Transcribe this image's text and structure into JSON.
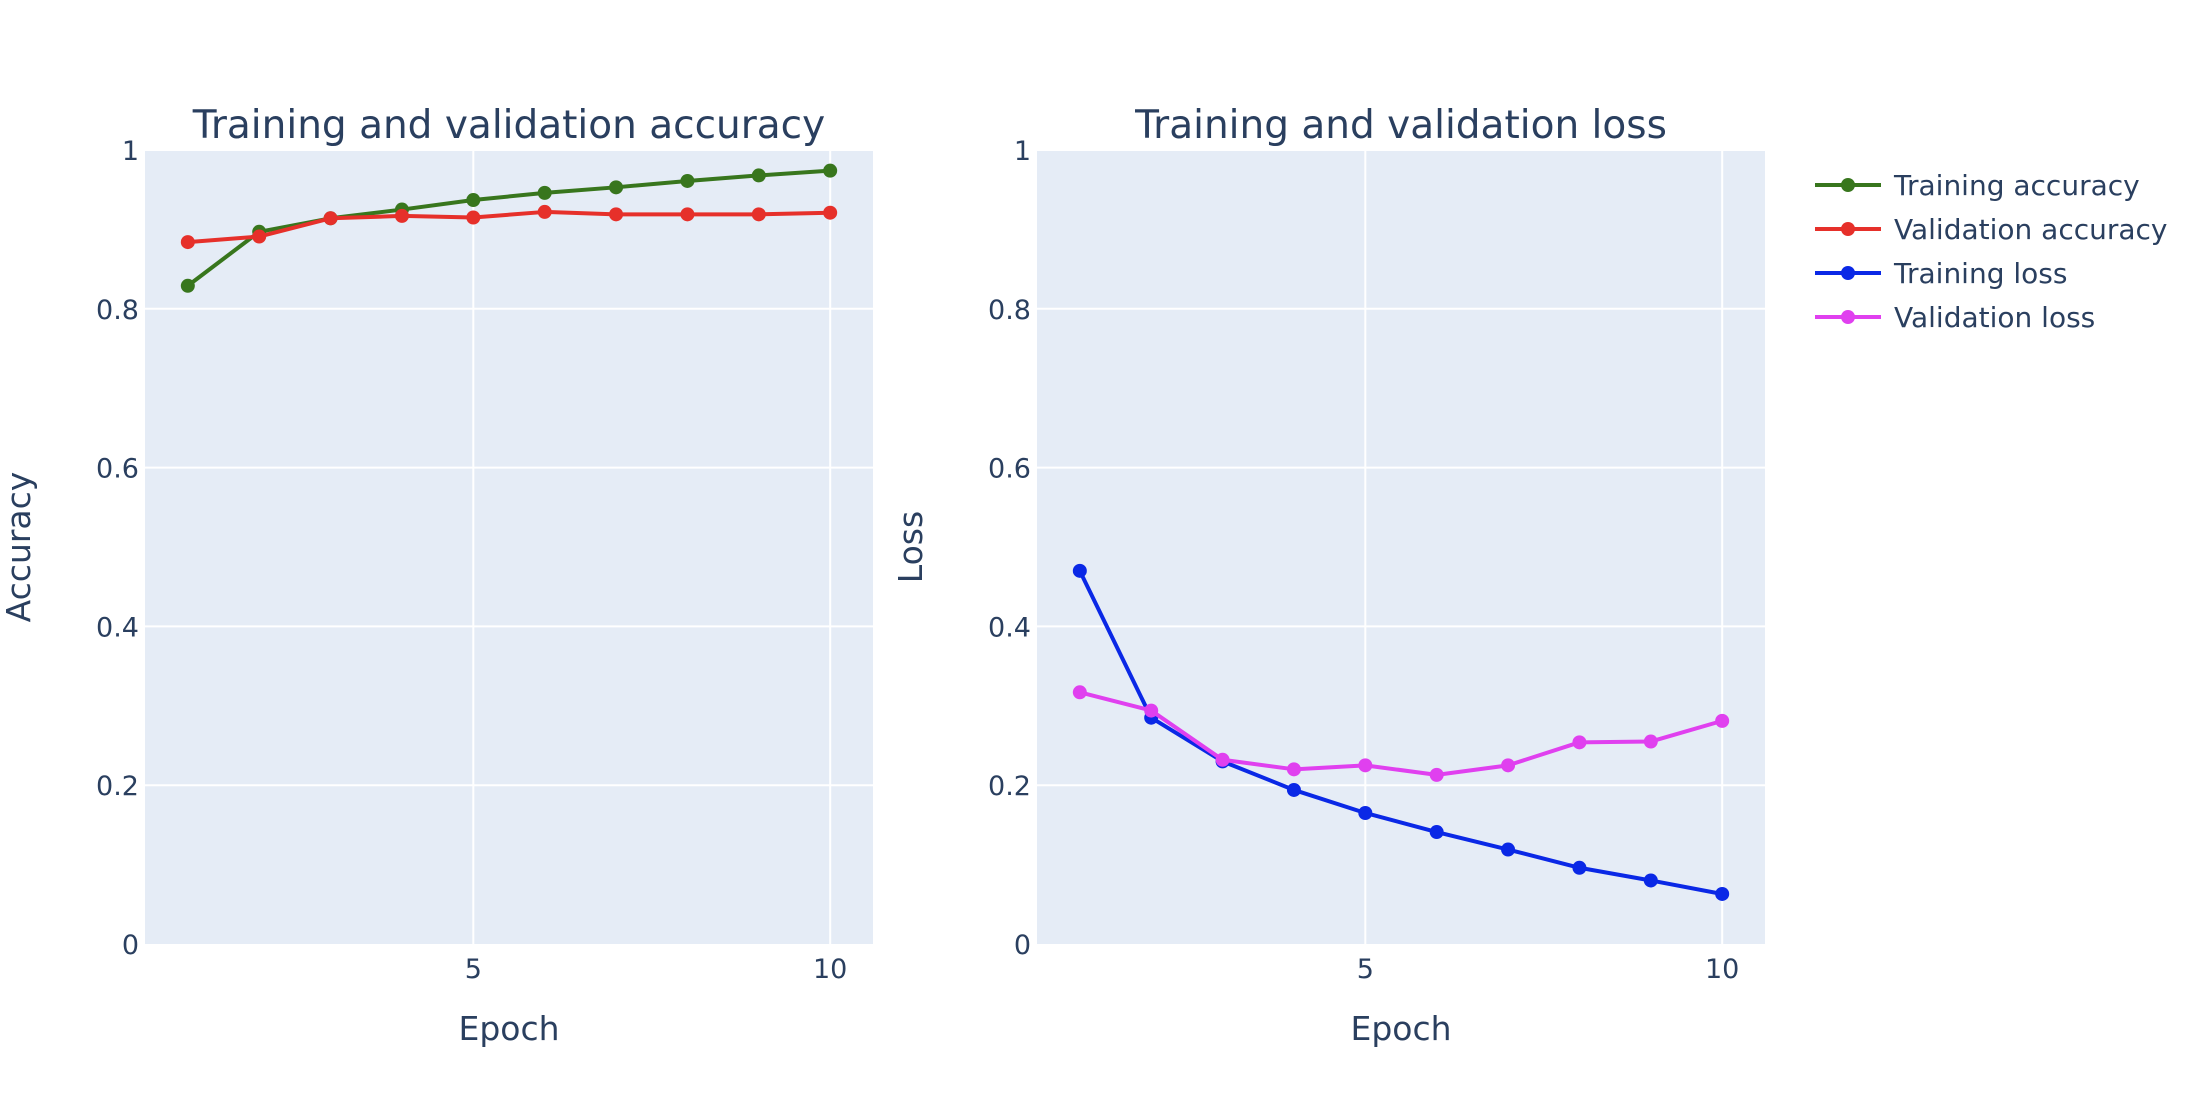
{
  "chart_data": [
    {
      "type": "line",
      "title": "Training and validation accuracy",
      "xlabel": "Epoch",
      "ylabel": "Accuracy",
      "x": [
        1,
        2,
        3,
        4,
        5,
        6,
        7,
        8,
        9,
        10
      ],
      "xlim": [
        0.4,
        10.6
      ],
      "ylim": [
        0,
        1
      ],
      "xticks": [
        5,
        10
      ],
      "yticks": [
        0,
        0.2,
        0.4,
        0.6,
        0.8,
        1
      ],
      "ytick_labels": [
        "0",
        "0.2",
        "0.4",
        "0.6",
        "0.8",
        "1"
      ],
      "grid": true,
      "series": [
        {
          "name": "Training accuracy",
          "color": "#38761d",
          "values": [
            0.829,
            0.897,
            0.914,
            0.925,
            0.937,
            0.946,
            0.953,
            0.961,
            0.968,
            0.974
          ]
        },
        {
          "name": "Validation accuracy",
          "color": "#e6302a",
          "values": [
            0.884,
            0.891,
            0.914,
            0.917,
            0.915,
            0.922,
            0.919,
            0.919,
            0.919,
            0.921
          ]
        }
      ]
    },
    {
      "type": "line",
      "title": "Training and validation loss",
      "xlabel": "Epoch",
      "ylabel": "Loss",
      "x": [
        1,
        2,
        3,
        4,
        5,
        6,
        7,
        8,
        9,
        10
      ],
      "xlim": [
        0.4,
        10.6
      ],
      "ylim": [
        0,
        1
      ],
      "xticks": [
        5,
        10
      ],
      "yticks": [
        0,
        0.2,
        0.4,
        0.6,
        0.8,
        1
      ],
      "ytick_labels": [
        "0",
        "0.2",
        "0.4",
        "0.6",
        "0.8",
        "1"
      ],
      "grid": true,
      "series": [
        {
          "name": "Training loss",
          "color": "#0a28e6",
          "values": [
            0.47,
            0.285,
            0.23,
            0.194,
            0.165,
            0.141,
            0.119,
            0.096,
            0.08,
            0.063
          ]
        },
        {
          "name": "Validation loss",
          "color": "#e040ef",
          "values": [
            0.317,
            0.294,
            0.232,
            0.22,
            0.225,
            0.213,
            0.225,
            0.254,
            0.255,
            0.281
          ]
        }
      ]
    }
  ],
  "legend": {
    "position": "top-right",
    "entries": [
      "Training accuracy",
      "Validation accuracy",
      "Training loss",
      "Validation loss"
    ]
  }
}
